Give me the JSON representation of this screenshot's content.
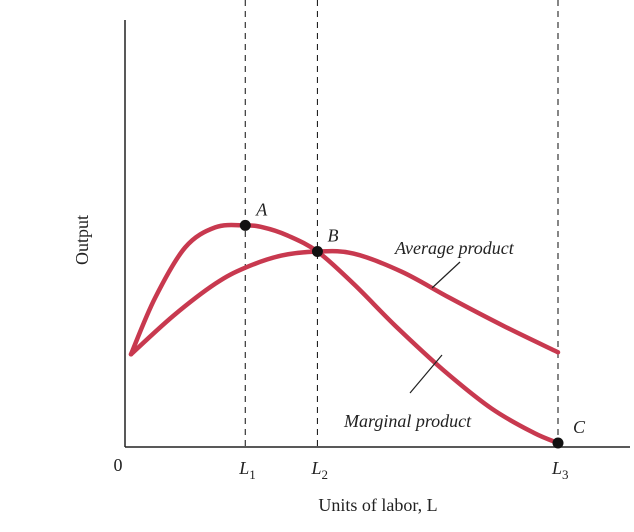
{
  "chart_data": {
    "type": "line",
    "xlabel": "Units of labor, L",
    "ylabel": "Output",
    "origin_label": "0",
    "x_ticks": [
      {
        "name": "L",
        "sub": "1",
        "x": 2
      },
      {
        "name": "L",
        "sub": "2",
        "x": 3.2
      },
      {
        "name": "L",
        "sub": "3",
        "x": 7.2
      }
    ],
    "xlim": [
      0,
      8.4
    ],
    "ylim": [
      0,
      10
    ],
    "series": [
      {
        "name": "Marginal product",
        "color": "#c8394f",
        "x": [
          0.1,
          0.5,
          1.0,
          1.5,
          2.0,
          2.3,
          2.7,
          3.2,
          3.8,
          4.5,
          5.3,
          6.1,
          6.8,
          7.2
        ],
        "y": [
          2.3,
          3.7,
          4.95,
          5.45,
          5.5,
          5.45,
          5.25,
          4.85,
          4.05,
          3.0,
          1.9,
          0.95,
          0.35,
          0.1
        ]
      },
      {
        "name": "Average product",
        "color": "#c8394f",
        "x": [
          0.1,
          0.8,
          1.5,
          2.0,
          2.6,
          3.2,
          3.8,
          4.6,
          5.4,
          6.3,
          7.2
        ],
        "y": [
          2.3,
          3.25,
          4.05,
          4.45,
          4.75,
          4.85,
          4.8,
          4.35,
          3.7,
          3.0,
          2.35
        ]
      }
    ],
    "points": [
      {
        "label": "A",
        "x": 2,
        "y": 5.5
      },
      {
        "label": "B",
        "x": 3.2,
        "y": 4.85
      },
      {
        "label": "C",
        "x": 7.2,
        "y": 0.1
      }
    ],
    "annotations": [
      "Average product",
      "Marginal product"
    ],
    "grid": false
  }
}
